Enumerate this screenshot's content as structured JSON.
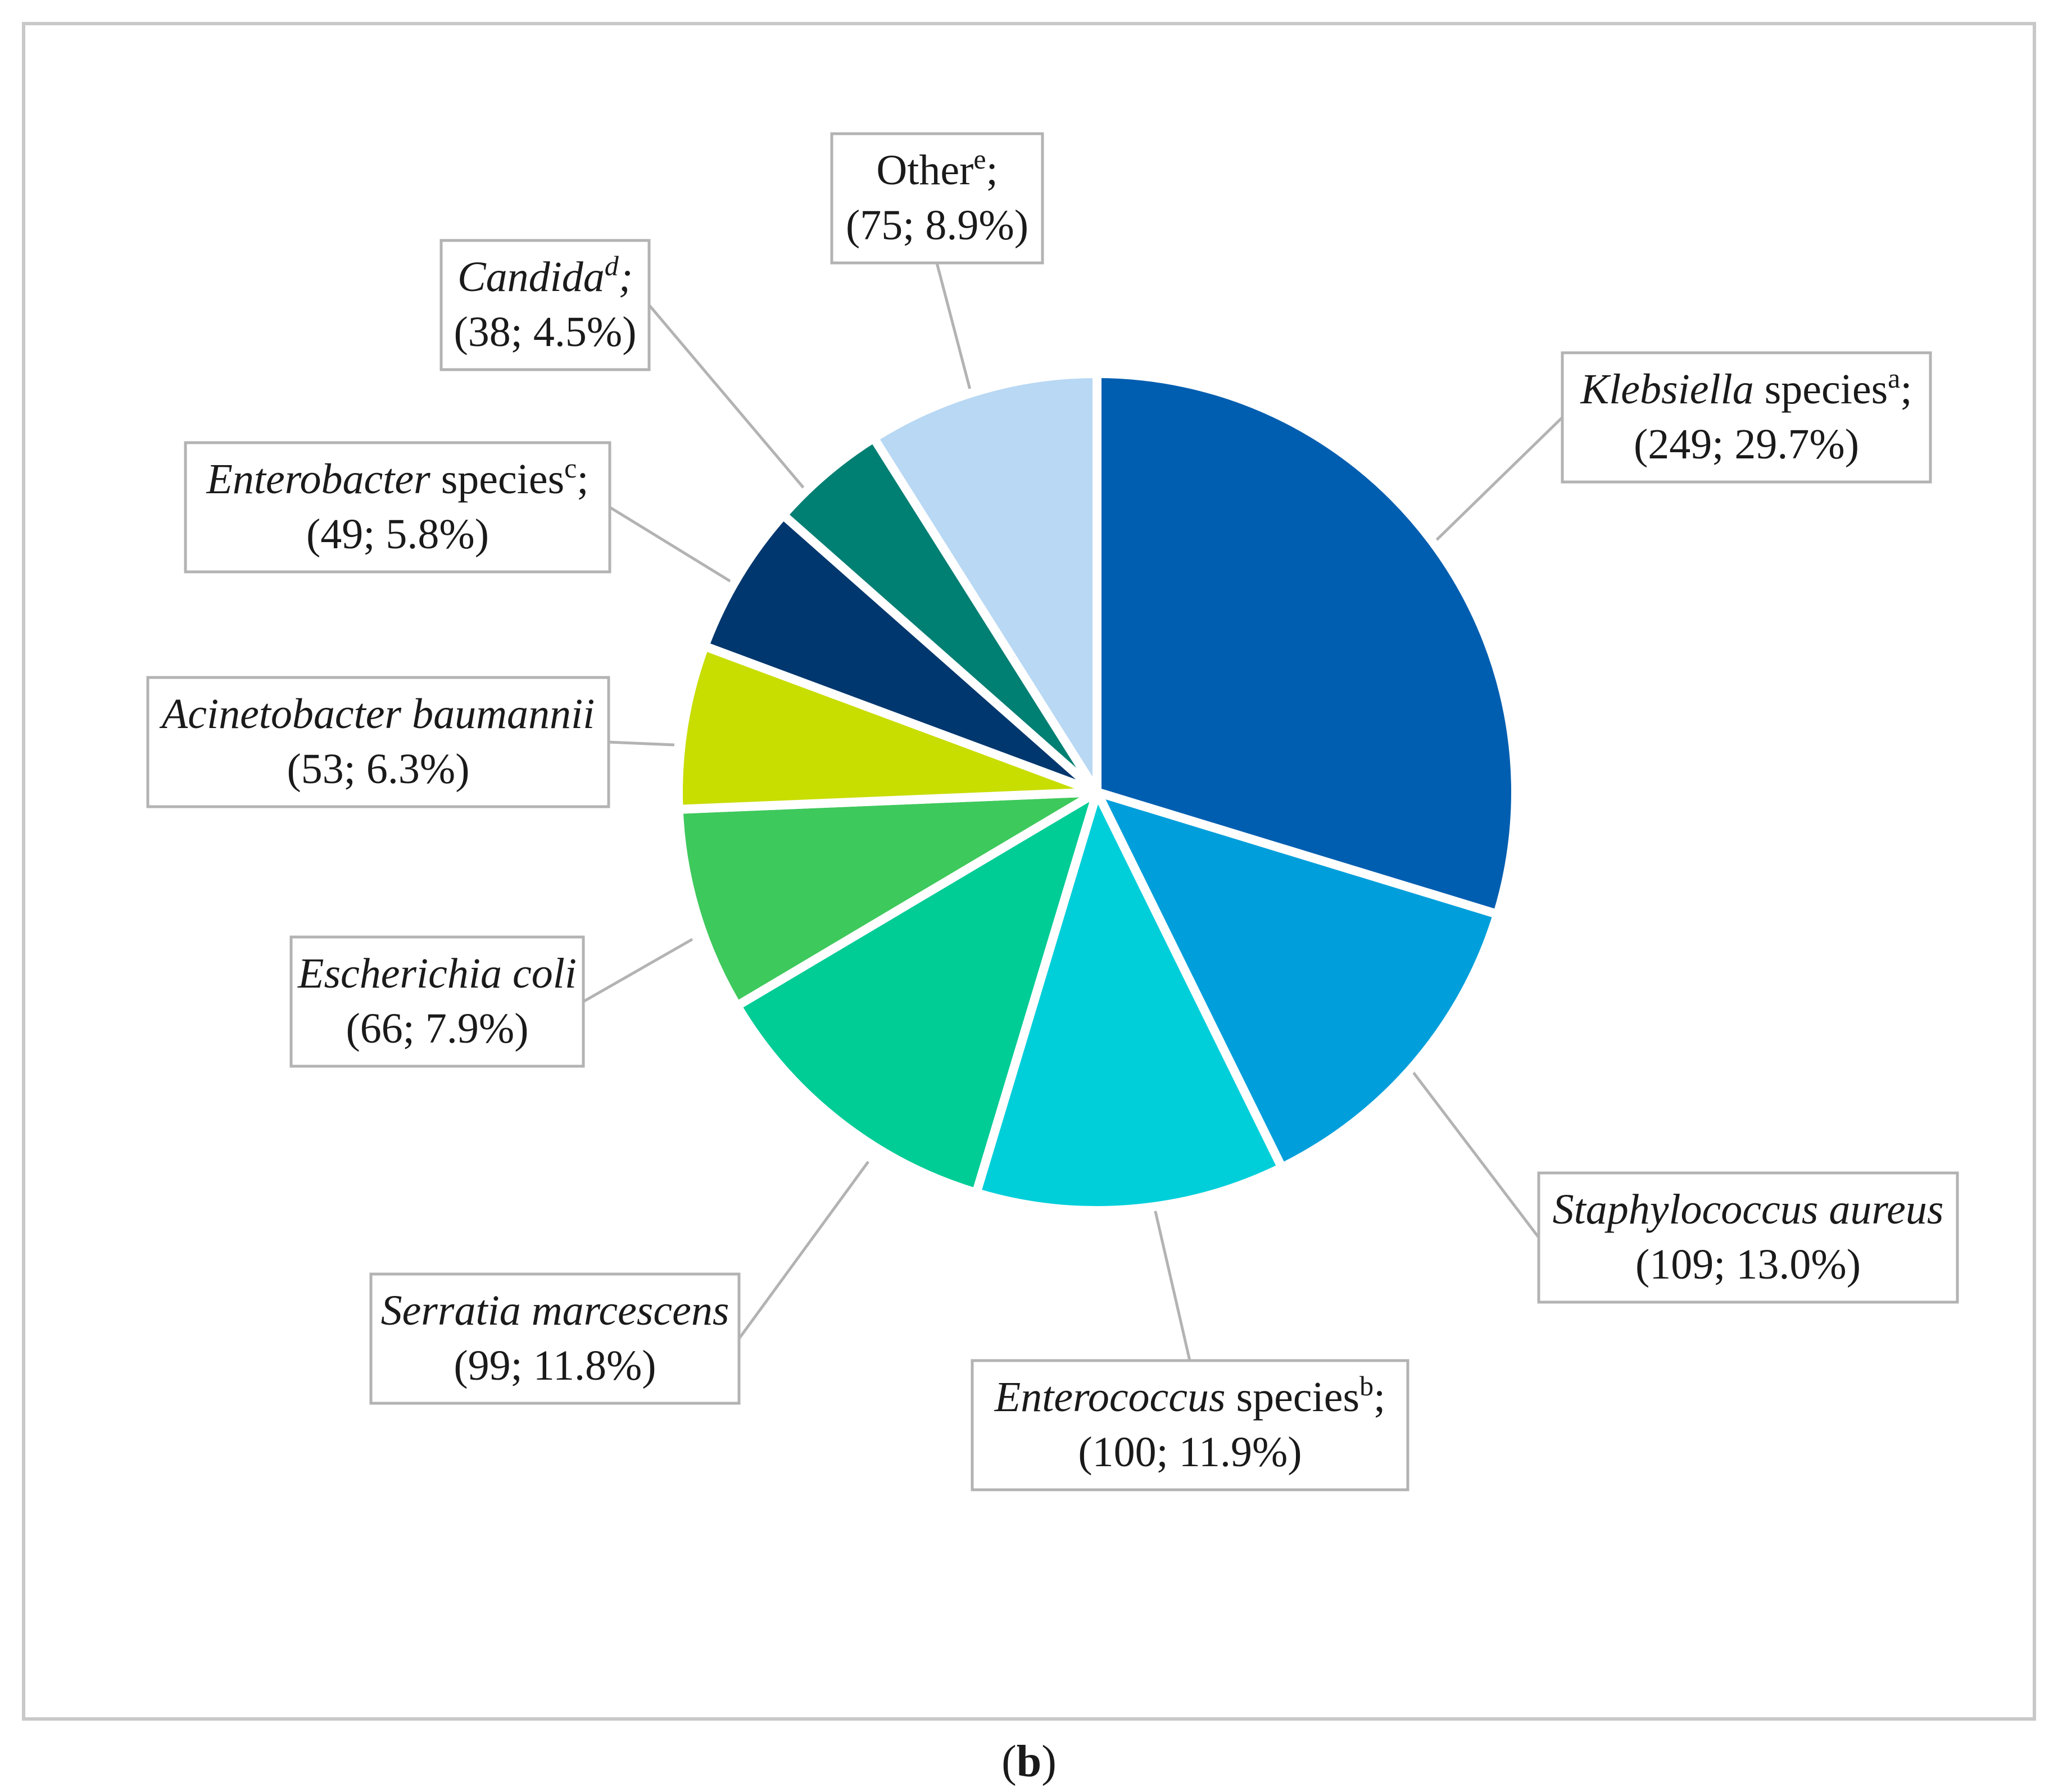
{
  "chart_data": {
    "type": "pie",
    "caption": {
      "open": "(",
      "letter": "b",
      "close": ")"
    },
    "slices": [
      {
        "label": "Klebsiella species",
        "italic": "Klebsiella",
        "rest": " species",
        "sup": "a",
        "suffix": ";",
        "count": 249,
        "percent": 29.7,
        "value_text": "(249; 29.7%)",
        "color": "#005eb0"
      },
      {
        "label": "Staphylococcus aureus",
        "italic": "Staphylococcus aureus",
        "rest": "",
        "sup": "",
        "suffix": "",
        "count": 109,
        "percent": 13.0,
        "value_text": "(109; 13.0%)",
        "color": "#009fdb"
      },
      {
        "label": "Enterococcus species",
        "italic": "Enterococcus",
        "rest": " species",
        "sup": "b",
        "suffix": ";",
        "count": 100,
        "percent": 11.9,
        "value_text": "(100; 11.9%)",
        "color": "#00cfda"
      },
      {
        "label": "Serratia marcescens",
        "italic": "Serratia marcescens",
        "rest": "",
        "sup": "",
        "suffix": "",
        "count": 99,
        "percent": 11.8,
        "value_text": "(99; 11.8%)",
        "color": "#00cc96"
      },
      {
        "label": "Escherichia coli",
        "italic": "Escherichia coli",
        "rest": "",
        "sup": "",
        "suffix": "",
        "count": 66,
        "percent": 7.9,
        "value_text": "(66; 7.9%)",
        "color": "#3ec95c"
      },
      {
        "label": "Acinetobacter baumannii",
        "italic": "Acinetobacter baumannii",
        "rest": "",
        "sup": "",
        "suffix": "",
        "count": 53,
        "percent": 6.3,
        "value_text": "(53; 6.3%)",
        "color": "#c8dd00"
      },
      {
        "label": "Enterobacter species",
        "italic": "Enterobacter",
        "rest": " species",
        "sup": "c",
        "suffix": ";",
        "count": 49,
        "percent": 5.8,
        "value_text": "(49; 5.8%)",
        "color": "#00376e"
      },
      {
        "label": "Candida",
        "italic": "Candida",
        "rest": "",
        "sup": "d",
        "suffix": ";",
        "count": 38,
        "percent": 4.5,
        "value_text": "(38; 4.5%)",
        "color": "#007f73"
      },
      {
        "label": "Other",
        "italic": "",
        "rest": "Other",
        "sup": "e",
        "suffix": ";",
        "count": 75,
        "percent": 8.9,
        "value_text": "(75; 8.9%)",
        "color": "#b8d8f4"
      }
    ]
  }
}
